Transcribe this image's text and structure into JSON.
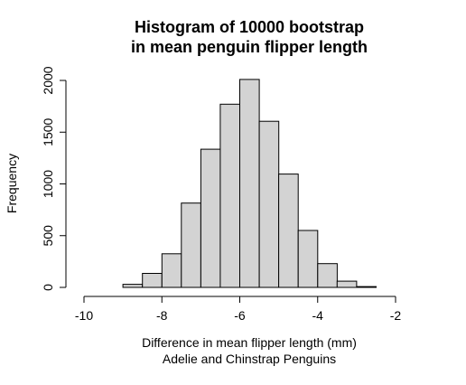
{
  "chart_data": {
    "type": "bar",
    "title_line1": "Histogram of 10000 bootstrap",
    "title_line2": "in mean penguin flipper length",
    "xlabel_line1": "Difference in mean flipper length (mm)",
    "xlabel_line2": "Adelie and Chinstrap Penguins",
    "ylabel": "Frequency",
    "xlim": [
      -10,
      -2
    ],
    "ylim": [
      0,
      2000
    ],
    "x_ticks": [
      -10,
      -8,
      -6,
      -4,
      -2
    ],
    "x_tick_labels": [
      "-10",
      "-8",
      "-6",
      "-4",
      "-2"
    ],
    "y_ticks": [
      0,
      500,
      1000,
      1500,
      2000
    ],
    "y_tick_labels": [
      "0",
      "500",
      "1000",
      "1500",
      "2000"
    ],
    "bin_width": 0.5,
    "bins": [
      {
        "start": -10.0,
        "end": -9.5,
        "value": 0
      },
      {
        "start": -9.5,
        "end": -9.0,
        "value": 0
      },
      {
        "start": -9.0,
        "end": -8.5,
        "value": 30
      },
      {
        "start": -8.5,
        "end": -8.0,
        "value": 135
      },
      {
        "start": -8.0,
        "end": -7.5,
        "value": 325
      },
      {
        "start": -7.5,
        "end": -7.0,
        "value": 815
      },
      {
        "start": -7.0,
        "end": -6.5,
        "value": 1335
      },
      {
        "start": -6.5,
        "end": -6.0,
        "value": 1770
      },
      {
        "start": -6.0,
        "end": -5.5,
        "value": 2010
      },
      {
        "start": -5.5,
        "end": -5.0,
        "value": 1605
      },
      {
        "start": -5.0,
        "end": -4.5,
        "value": 1095
      },
      {
        "start": -4.5,
        "end": -4.0,
        "value": 550
      },
      {
        "start": -4.0,
        "end": -3.5,
        "value": 230
      },
      {
        "start": -3.5,
        "end": -3.0,
        "value": 60
      },
      {
        "start": -3.0,
        "end": -2.5,
        "value": 8
      },
      {
        "start": -2.5,
        "end": -2.0,
        "value": 0
      },
      {
        "start": -2.0,
        "end": -1.5,
        "value": 0
      }
    ],
    "bar_color": "#d3d3d3",
    "grid": false
  }
}
